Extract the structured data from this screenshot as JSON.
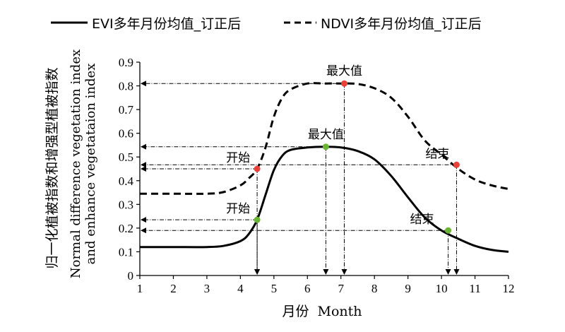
{
  "chart_data": {
    "type": "line",
    "legend": {
      "position": "top",
      "entries": [
        {
          "label": "EVI多年月份均值_订正后",
          "style": "solid"
        },
        {
          "label": "NDVI多年月份均值_订正后",
          "style": "dashed"
        }
      ]
    },
    "xlabel_cn": "月份",
    "xlabel_en": "Month",
    "ylabel_cn": "归一化植被指数和增强型植被指数",
    "ylabel_en_1": "Normal difference vegetation index",
    "ylabel_en_2": "and enhance vegetataion index",
    "xlim": [
      1,
      12
    ],
    "ylim": [
      0,
      0.9
    ],
    "x_ticks": [
      1,
      2,
      3,
      4,
      5,
      6,
      7,
      8,
      9,
      10,
      11,
      12
    ],
    "x_tick_labels": [
      "1",
      "2",
      "3",
      "4",
      "5",
      "6",
      "7",
      "8",
      "9",
      "10",
      "11",
      "12"
    ],
    "y_ticks": [
      0,
      0.1,
      0.2,
      0.3,
      0.4,
      0.5,
      0.6,
      0.7,
      0.8,
      0.9
    ],
    "y_tick_labels": [
      "0",
      "0.1",
      "0.2",
      "0.3",
      "0.4",
      "0.5",
      "0.6",
      "0.7",
      "0.8",
      "0.9"
    ],
    "grid": false,
    "series": [
      {
        "name": "EVI多年月份均值_订正后",
        "style": "solid",
        "x": [
          1,
          2,
          3,
          3.5,
          4,
          4.25,
          4.5,
          4.75,
          5,
          5.25,
          5.5,
          6,
          6.5,
          7,
          7.5,
          8,
          8.5,
          9,
          9.5,
          10,
          10.5,
          11,
          11.5,
          12
        ],
        "y": [
          0.12,
          0.12,
          0.12,
          0.125,
          0.145,
          0.175,
          0.235,
          0.34,
          0.445,
          0.505,
          0.53,
          0.54,
          0.543,
          0.54,
          0.525,
          0.49,
          0.42,
          0.33,
          0.245,
          0.19,
          0.155,
          0.125,
          0.108,
          0.1
        ]
      },
      {
        "name": "NDVI多年月份均值_订正后",
        "style": "dashed",
        "x": [
          1,
          2,
          3,
          3.5,
          4,
          4.25,
          4.5,
          4.75,
          5,
          5.25,
          5.5,
          6,
          6.5,
          7,
          7.5,
          8,
          8.5,
          9,
          9.5,
          10,
          10.5,
          11,
          11.5,
          12
        ],
        "y": [
          0.345,
          0.345,
          0.345,
          0.352,
          0.38,
          0.41,
          0.45,
          0.54,
          0.67,
          0.75,
          0.785,
          0.81,
          0.81,
          0.81,
          0.808,
          0.79,
          0.75,
          0.67,
          0.57,
          0.51,
          0.45,
          0.405,
          0.38,
          0.365
        ]
      }
    ],
    "annotations": [
      {
        "series": "NDVI多年月份均值_订正后",
        "label": "开始",
        "x": 4.5,
        "y": 0.45,
        "color": "#e8413a",
        "label_pos": "left"
      },
      {
        "series": "NDVI多年月份均值_订正后",
        "label": "最大值",
        "x": 7.1,
        "y": 0.81,
        "color": "#e8413a",
        "label_pos": "above"
      },
      {
        "series": "NDVI多年月份均值_订正后",
        "label": "结束",
        "x": 10.45,
        "y": 0.467,
        "color": "#e8413a",
        "label_pos": "left"
      },
      {
        "series": "EVI多年月份均值_订正后",
        "label": "开始",
        "x": 4.5,
        "y": 0.235,
        "color": "#6ab534",
        "label_pos": "left"
      },
      {
        "series": "EVI多年月份均值_订正后",
        "label": "最大值",
        "x": 6.55,
        "y": 0.543,
        "color": "#6ab534",
        "label_pos": "above"
      },
      {
        "series": "EVI多年月份均值_订正后",
        "label": "结束",
        "x": 10.2,
        "y": 0.19,
        "color": "#6ab534",
        "label_pos": "above-left"
      }
    ]
  }
}
